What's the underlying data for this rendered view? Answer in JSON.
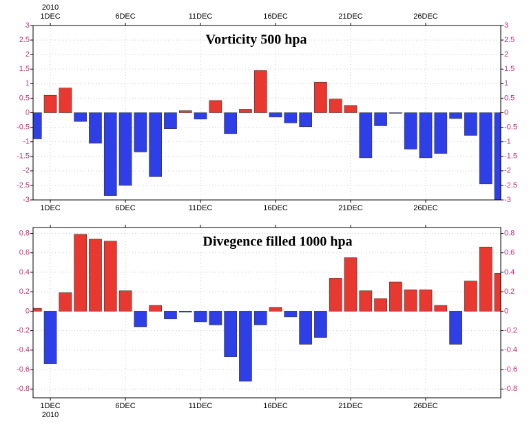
{
  "chart_data": [
    {
      "type": "bar",
      "title": "Vorticity 500 hpa",
      "year": "2010",
      "x": [
        0,
        1,
        2,
        3,
        4,
        5,
        6,
        7,
        8,
        9,
        10,
        11,
        12,
        13,
        14,
        15,
        16,
        17,
        18,
        19,
        20,
        21,
        22,
        23,
        24,
        25,
        26,
        27,
        28,
        29,
        30,
        31
      ],
      "values": [
        -0.9,
        0.6,
        0.85,
        -0.3,
        -1.05,
        -2.85,
        -2.5,
        -1.35,
        -2.2,
        -0.55,
        0.07,
        -0.22,
        0.42,
        -0.72,
        0.12,
        1.45,
        -0.15,
        -0.35,
        -0.48,
        1.05,
        0.47,
        0.25,
        -1.55,
        -0.45,
        -0.02,
        -1.25,
        -1.55,
        -1.4,
        -0.2,
        -0.78,
        -2.45,
        -3.1
      ],
      "positive_color": "#e8382f",
      "negative_color": "#2e3fe8",
      "xlim": [
        -0.15,
        31
      ],
      "ylim": [
        -3,
        3
      ],
      "xticks": [
        {
          "value": 1,
          "label": "1DEC"
        },
        {
          "value": 6,
          "label": "6DEC"
        },
        {
          "value": 11,
          "label": "11DEC"
        },
        {
          "value": 16,
          "label": "16DEC"
        },
        {
          "value": 21,
          "label": "21DEC"
        },
        {
          "value": 26,
          "label": "26DEC"
        }
      ],
      "yticks": [
        -3,
        -2.5,
        -2,
        -1.5,
        -1,
        -0.5,
        0,
        0.5,
        1,
        1.5,
        2,
        2.5,
        3
      ],
      "grid": true,
      "top_axis_labels": true
    },
    {
      "type": "bar",
      "title": "Divegence filled 1000 hpa",
      "year": "2010",
      "x": [
        0,
        1,
        2,
        3,
        4,
        5,
        6,
        7,
        8,
        9,
        10,
        11,
        12,
        13,
        14,
        15,
        16,
        17,
        18,
        19,
        20,
        21,
        22,
        23,
        24,
        25,
        26,
        27,
        28,
        29,
        30,
        31
      ],
      "values": [
        0.03,
        -0.54,
        0.19,
        0.79,
        0.74,
        0.72,
        0.21,
        -0.16,
        0.06,
        -0.08,
        -0.01,
        -0.11,
        -0.14,
        -0.47,
        -0.72,
        -0.14,
        0.04,
        -0.06,
        -0.34,
        -0.27,
        0.34,
        0.55,
        0.21,
        0.13,
        0.3,
        0.22,
        0.22,
        0.06,
        -0.34,
        0.31,
        0.66,
        0.39
      ],
      "positive_color": "#e8382f",
      "negative_color": "#2e3fe8",
      "xlim": [
        -0.15,
        31
      ],
      "ylim": [
        -0.89,
        0.86
      ],
      "xticks": [
        {
          "value": 1,
          "label": "1DEC"
        },
        {
          "value": 6,
          "label": "6DEC"
        },
        {
          "value": 11,
          "label": "11DEC"
        },
        {
          "value": 16,
          "label": "16DEC"
        },
        {
          "value": 21,
          "label": "21DEC"
        },
        {
          "value": 26,
          "label": "26DEC"
        }
      ],
      "yticks": [
        -0.8,
        -0.6,
        -0.4,
        -0.2,
        0,
        0.2,
        0.4,
        0.6,
        0.8
      ],
      "grid": true,
      "top_axis_labels": false
    }
  ]
}
